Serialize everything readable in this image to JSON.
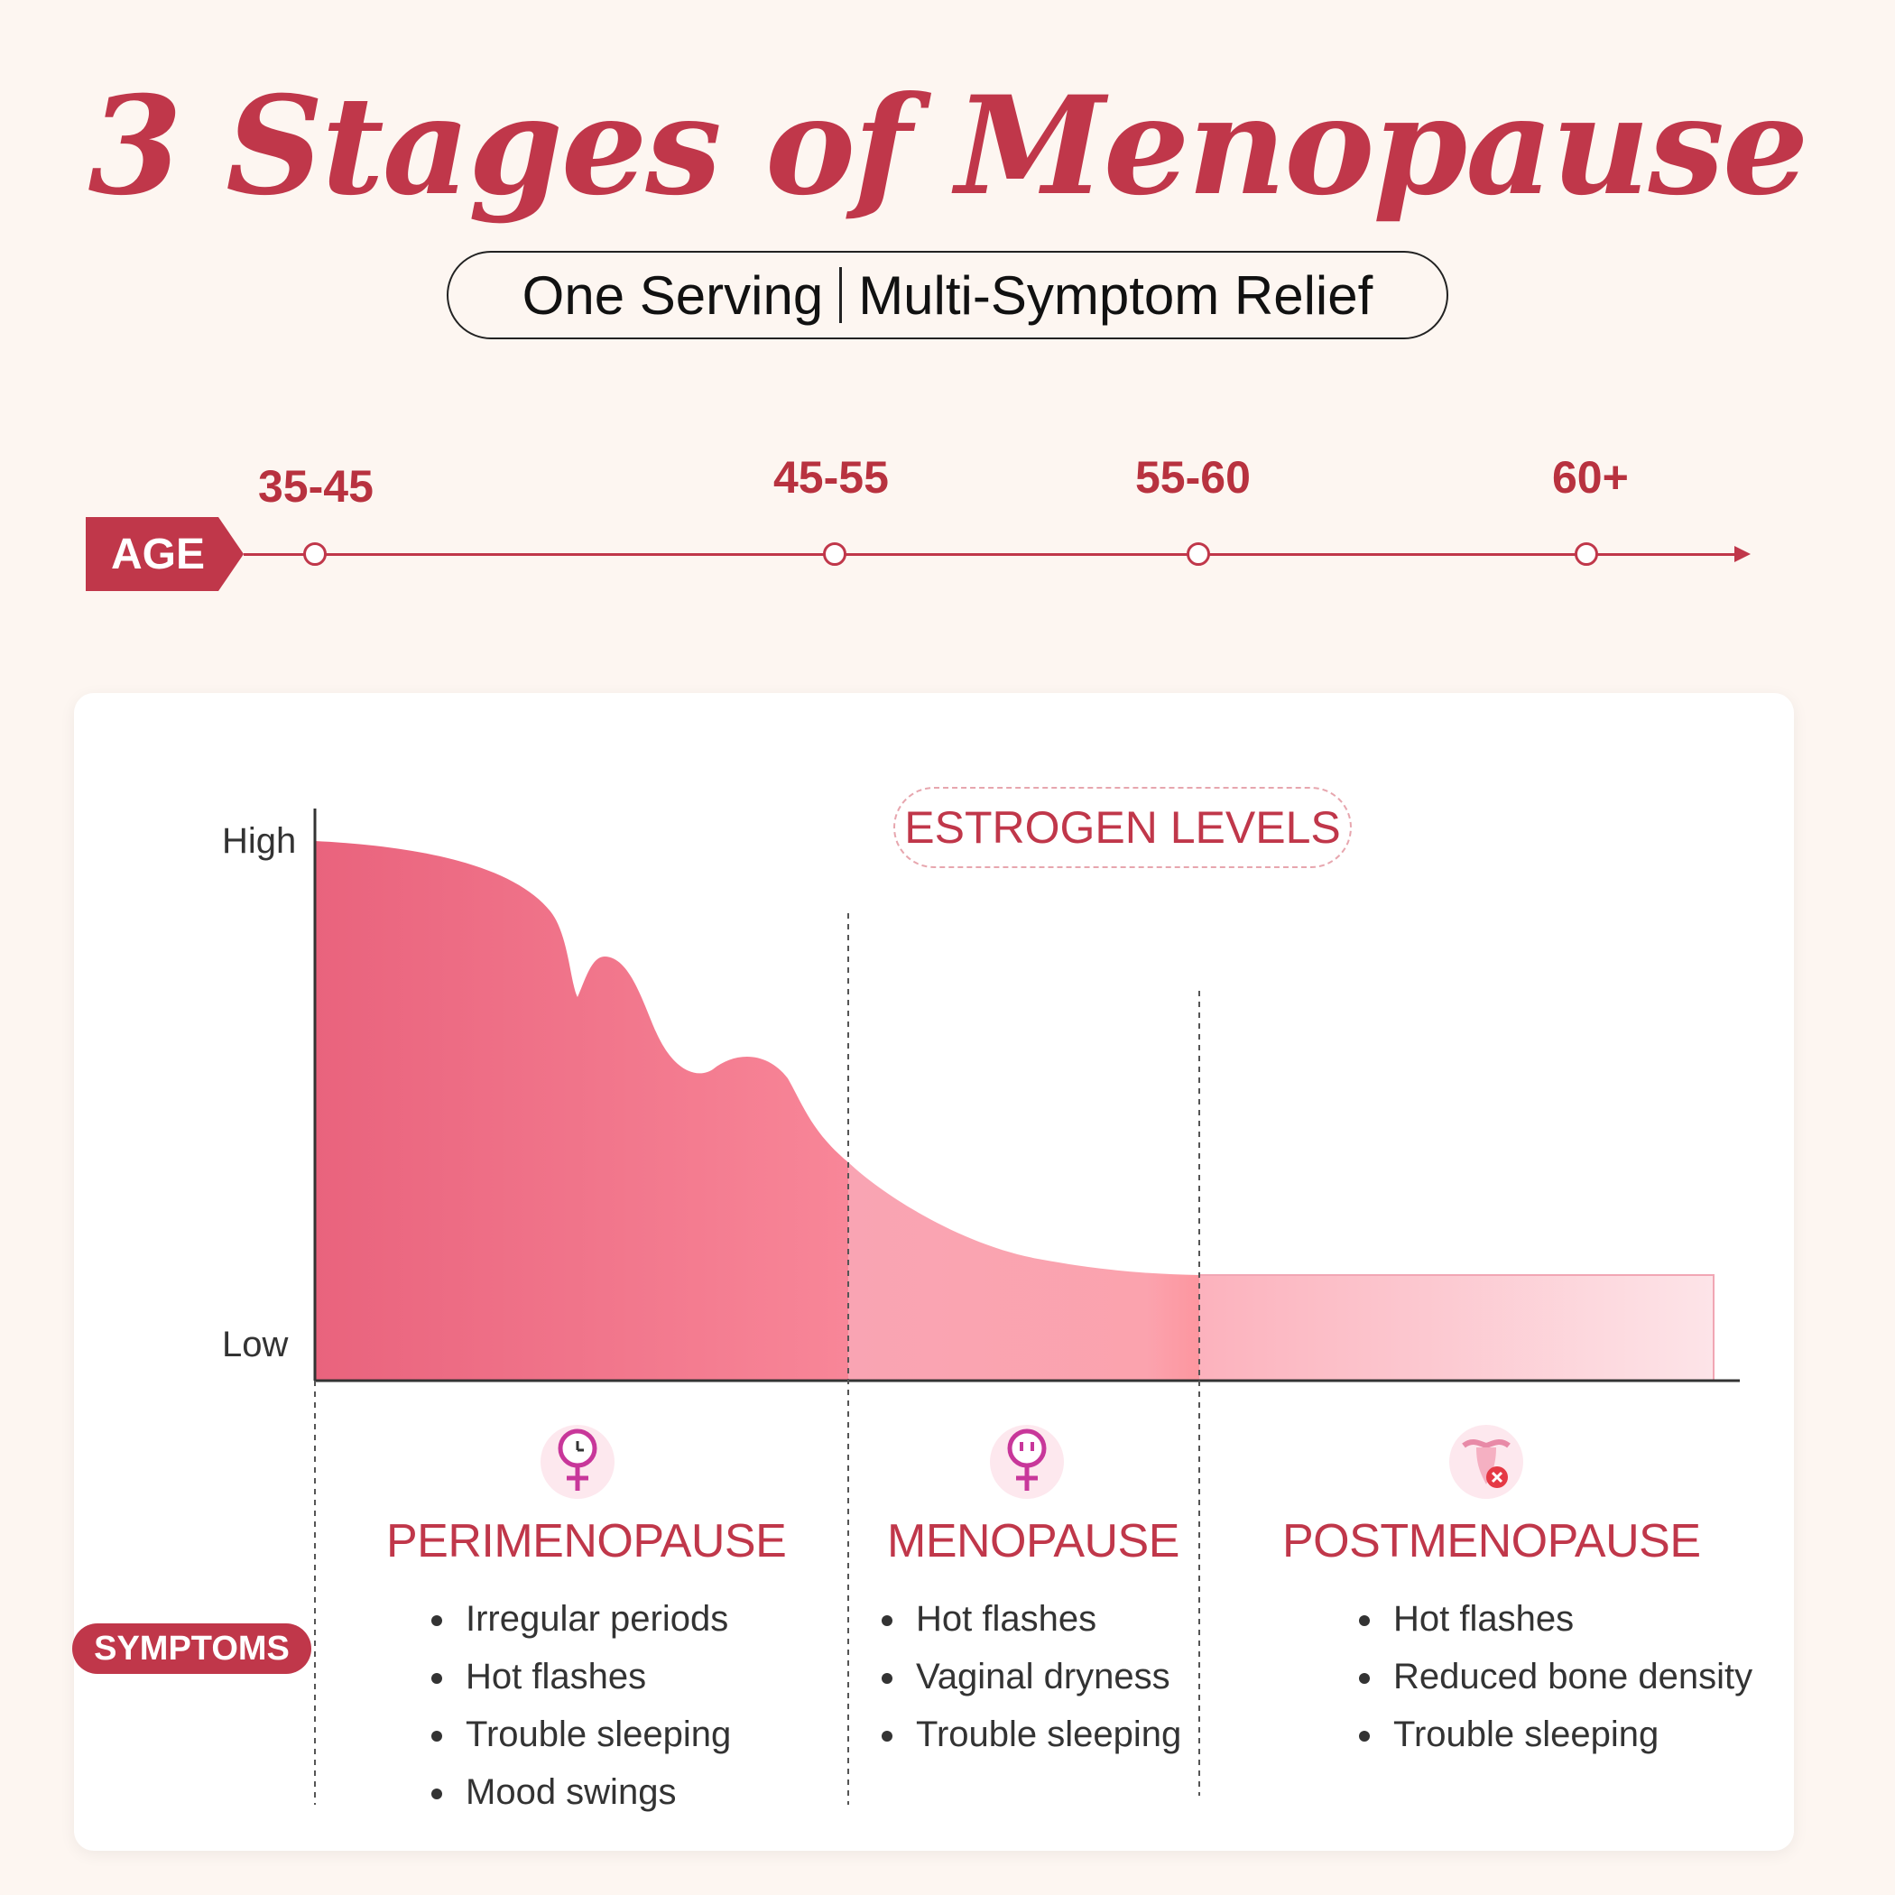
{
  "header": {
    "title": "3 Stages of Menopause",
    "subtitle_left": "One Serving",
    "subtitle_right": "Multi-Symptom Relief"
  },
  "age_axis": {
    "tag": "AGE",
    "labels": [
      "35-45",
      "45-55",
      "55-60",
      "60+"
    ]
  },
  "chart": {
    "legend": "ESTROGEN LEVELS",
    "y_high": "High",
    "y_low": "Low"
  },
  "symptoms_tag": "SYMPTOMS",
  "stages": [
    {
      "title": "PERIMENOPAUSE",
      "icon": "female-clock-icon",
      "symptoms": [
        "Irregular periods",
        "Hot flashes",
        "Trouble sleeping",
        "Mood swings"
      ]
    },
    {
      "title": "MENOPAUSE",
      "icon": "female-face-icon",
      "symptoms": [
        "Hot flashes",
        "Vaginal dryness",
        "Trouble sleeping"
      ]
    },
    {
      "title": "POSTMENOPAUSE",
      "icon": "uterus-icon",
      "symptoms": [
        "Hot flashes",
        "Reduced bone density",
        "Trouble sleeping"
      ]
    }
  ],
  "colors": {
    "brand_red": "#c0374a",
    "curve_dark": "#e9677f",
    "curve_light": "#fbdfe4",
    "background": "#fdf6f1"
  }
}
